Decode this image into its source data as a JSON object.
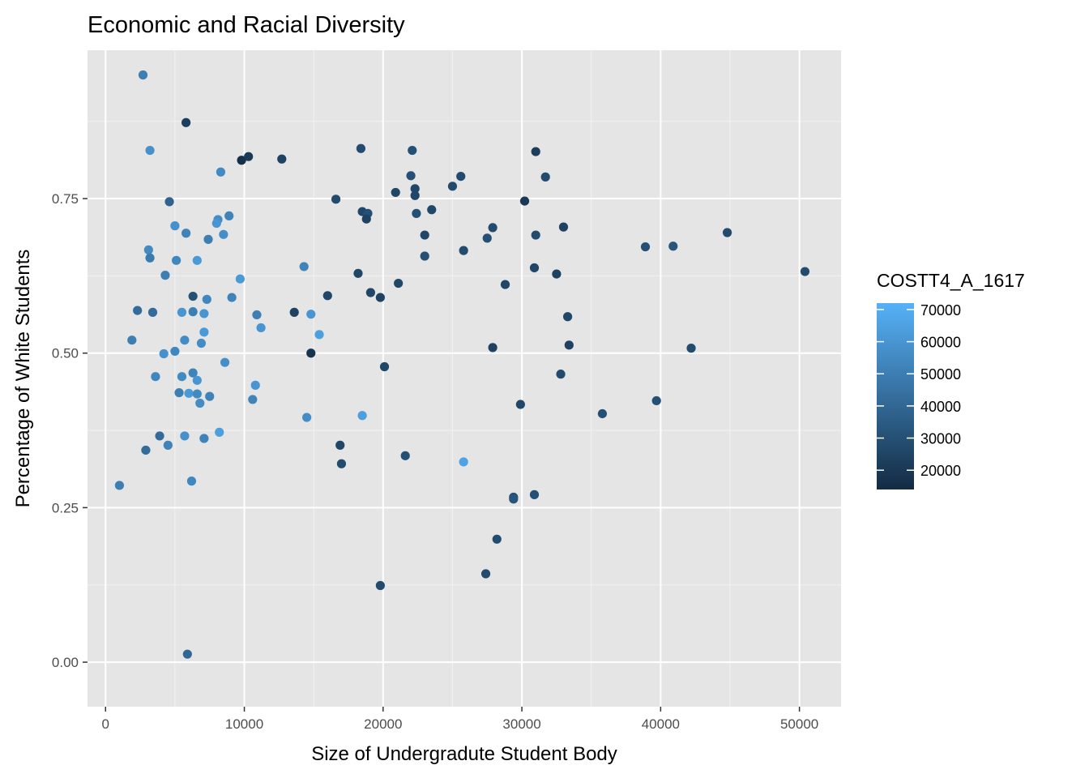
{
  "chart_data": {
    "type": "scatter",
    "title": "Economic and Racial Diversity",
    "xlabel": "Size of Undergradute Student Body",
    "ylabel": "Percentage of White Students",
    "xlim": [
      -1300,
      53000
    ],
    "ylim": [
      -0.072,
      0.99
    ],
    "x_ticks": [
      0,
      10000,
      20000,
      30000,
      40000,
      50000
    ],
    "x_tick_labels": [
      "0",
      "10000",
      "20000",
      "30000",
      "40000",
      "50000"
    ],
    "y_ticks": [
      0,
      0.25,
      0.5,
      0.75
    ],
    "y_tick_labels": [
      "0.00",
      "0.25",
      "0.50",
      "0.75"
    ],
    "grid": true,
    "panel_background": "#e5e5e5",
    "legend": {
      "title": "COSTT4_A_1617",
      "placement": "right",
      "ticks": [
        20000,
        30000,
        40000,
        50000,
        60000,
        70000
      ],
      "tick_labels": [
        "20000",
        "30000",
        "40000",
        "50000",
        "60000",
        "70000"
      ],
      "range": [
        14000,
        72000
      ],
      "color_low": "#132b43",
      "color_high": "#56b1f7"
    },
    "points": [
      [
        2700,
        0.95,
        50000
      ],
      [
        3200,
        0.828,
        58000
      ],
      [
        5800,
        0.873,
        22000
      ],
      [
        9800,
        0.812,
        16000
      ],
      [
        10300,
        0.818,
        20000
      ],
      [
        12700,
        0.814,
        24000
      ],
      [
        8300,
        0.793,
        55000
      ],
      [
        4600,
        0.745,
        38000
      ],
      [
        5000,
        0.706,
        58000
      ],
      [
        5800,
        0.694,
        52000
      ],
      [
        8100,
        0.716,
        56000
      ],
      [
        8000,
        0.71,
        60000
      ],
      [
        8900,
        0.722,
        52000
      ],
      [
        8500,
        0.692,
        57000
      ],
      [
        7400,
        0.684,
        50000
      ],
      [
        3100,
        0.667,
        55000
      ],
      [
        3200,
        0.654,
        48000
      ],
      [
        5100,
        0.65,
        54000
      ],
      [
        6600,
        0.65,
        62000
      ],
      [
        4300,
        0.626,
        50000
      ],
      [
        9700,
        0.62,
        62000
      ],
      [
        6300,
        0.592,
        30000
      ],
      [
        7300,
        0.587,
        54000
      ],
      [
        9100,
        0.59,
        52000
      ],
      [
        2300,
        0.569,
        42000
      ],
      [
        3400,
        0.566,
        42000
      ],
      [
        5500,
        0.566,
        60000
      ],
      [
        6300,
        0.567,
        50000
      ],
      [
        7100,
        0.564,
        60000
      ],
      [
        10900,
        0.562,
        50000
      ],
      [
        11200,
        0.541,
        60000
      ],
      [
        7100,
        0.534,
        62000
      ],
      [
        5700,
        0.521,
        56000
      ],
      [
        1900,
        0.521,
        50000
      ],
      [
        6900,
        0.516,
        56000
      ],
      [
        4200,
        0.499,
        58000
      ],
      [
        5000,
        0.503,
        54000
      ],
      [
        8600,
        0.485,
        57000
      ],
      [
        3600,
        0.462,
        54000
      ],
      [
        5500,
        0.462,
        55000
      ],
      [
        6300,
        0.468,
        52000
      ],
      [
        6600,
        0.456,
        60000
      ],
      [
        10800,
        0.448,
        60000
      ],
      [
        5300,
        0.436,
        50000
      ],
      [
        6000,
        0.435,
        62000
      ],
      [
        6600,
        0.434,
        55000
      ],
      [
        7500,
        0.43,
        52000
      ],
      [
        6800,
        0.419,
        56000
      ],
      [
        10600,
        0.425,
        52000
      ],
      [
        3900,
        0.366,
        42000
      ],
      [
        5700,
        0.366,
        58000
      ],
      [
        4500,
        0.351,
        52000
      ],
      [
        7100,
        0.362,
        52000
      ],
      [
        8200,
        0.372,
        64000
      ],
      [
        2900,
        0.343,
        42000
      ],
      [
        6200,
        0.293,
        54000
      ],
      [
        1000,
        0.286,
        50000
      ],
      [
        5900,
        0.013,
        40000
      ],
      [
        14300,
        0.64,
        52000
      ],
      [
        14800,
        0.563,
        60000
      ],
      [
        15400,
        0.53,
        64000
      ],
      [
        14500,
        0.396,
        56000
      ],
      [
        18500,
        0.399,
        64000
      ],
      [
        25800,
        0.324,
        66000
      ],
      [
        18400,
        0.831,
        28000
      ],
      [
        22100,
        0.828,
        30000
      ],
      [
        31000,
        0.826,
        22000
      ],
      [
        22000,
        0.787,
        30000
      ],
      [
        25600,
        0.786,
        28000
      ],
      [
        31700,
        0.785,
        28000
      ],
      [
        22300,
        0.766,
        26000
      ],
      [
        20900,
        0.76,
        26000
      ],
      [
        22300,
        0.755,
        26000
      ],
      [
        25000,
        0.77,
        28000
      ],
      [
        16600,
        0.749,
        28000
      ],
      [
        30200,
        0.746,
        20000
      ],
      [
        18500,
        0.729,
        26000
      ],
      [
        18900,
        0.726,
        30000
      ],
      [
        18800,
        0.717,
        24000
      ],
      [
        22400,
        0.726,
        30000
      ],
      [
        23500,
        0.732,
        26000
      ],
      [
        27900,
        0.703,
        28000
      ],
      [
        33000,
        0.704,
        24000
      ],
      [
        23000,
        0.691,
        26000
      ],
      [
        31000,
        0.691,
        28000
      ],
      [
        27500,
        0.686,
        30000
      ],
      [
        25800,
        0.666,
        28000
      ],
      [
        23000,
        0.657,
        30000
      ],
      [
        30900,
        0.638,
        26000
      ],
      [
        32500,
        0.628,
        24000
      ],
      [
        18200,
        0.629,
        26000
      ],
      [
        16000,
        0.593,
        26000
      ],
      [
        21100,
        0.613,
        26000
      ],
      [
        28800,
        0.611,
        26000
      ],
      [
        19100,
        0.598,
        26000
      ],
      [
        19800,
        0.59,
        24000
      ],
      [
        13600,
        0.566,
        24000
      ],
      [
        33300,
        0.559,
        26000
      ],
      [
        33400,
        0.513,
        24000
      ],
      [
        27900,
        0.509,
        24000
      ],
      [
        14800,
        0.5,
        18000
      ],
      [
        20100,
        0.478,
        26000
      ],
      [
        32800,
        0.466,
        28000
      ],
      [
        29900,
        0.417,
        26000
      ],
      [
        16900,
        0.351,
        26000
      ],
      [
        17000,
        0.321,
        28000
      ],
      [
        21600,
        0.334,
        30000
      ],
      [
        29400,
        0.267,
        30000
      ],
      [
        29400,
        0.264,
        32000
      ],
      [
        30900,
        0.271,
        30000
      ],
      [
        28200,
        0.199,
        28000
      ],
      [
        27400,
        0.143,
        28000
      ],
      [
        19800,
        0.124,
        28000
      ],
      [
        35800,
        0.402,
        30000
      ],
      [
        39700,
        0.423,
        30000
      ],
      [
        42200,
        0.508,
        28000
      ],
      [
        38900,
        0.672,
        30000
      ],
      [
        40900,
        0.673,
        32000
      ],
      [
        44800,
        0.695,
        28000
      ],
      [
        50400,
        0.632,
        28000
      ]
    ]
  }
}
